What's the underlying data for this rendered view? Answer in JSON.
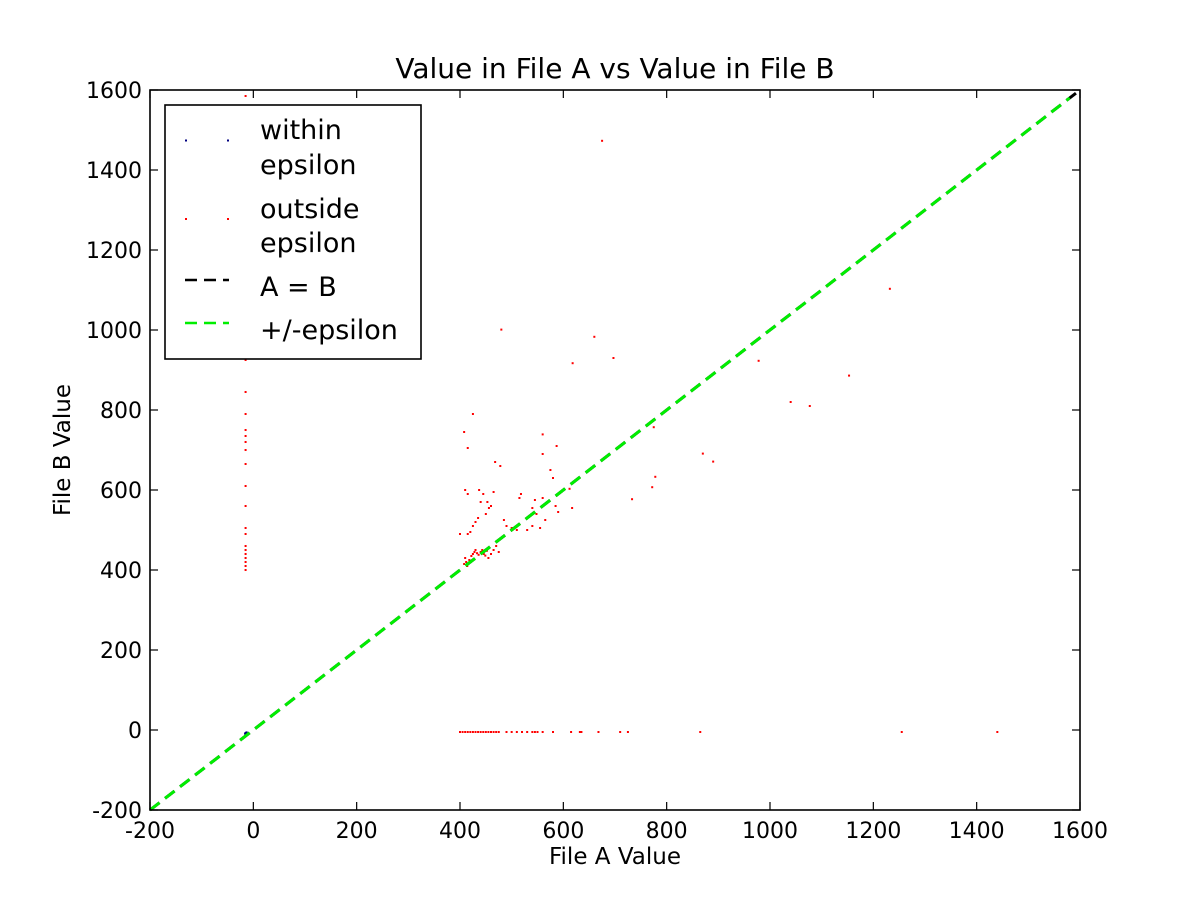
{
  "chart_data": {
    "type": "scatter",
    "title": "Value in File A vs Value in File B",
    "xlabel": "File A Value",
    "ylabel": "File B Value",
    "xlim": [
      -200,
      1600
    ],
    "ylim": [
      -200,
      1600
    ],
    "xticks": [
      -200,
      0,
      200,
      400,
      600,
      800,
      1000,
      1200,
      1400,
      1600
    ],
    "yticks": [
      -200,
      0,
      200,
      400,
      600,
      800,
      1000,
      1200,
      1400,
      1600
    ],
    "grid": false,
    "legend_position": "top-left",
    "series": [
      {
        "name": "within\nepsilon",
        "kind": "points",
        "color": "#000080",
        "points": [
          [
            -15,
            -8
          ],
          [
            -14,
            -7
          ],
          [
            -16,
            -9
          ],
          [
            -13,
            -6
          ]
        ]
      },
      {
        "name": "outside\nepsilon",
        "kind": "points",
        "color": "#ff0000",
        "points": [
          [
            675,
            1473
          ],
          [
            1232,
            1103
          ],
          [
            480,
            1001
          ],
          [
            660,
            983
          ],
          [
            697,
            930
          ],
          [
            618,
            917
          ],
          [
            978,
            923
          ],
          [
            1153,
            886
          ],
          [
            1040,
            820
          ],
          [
            1077,
            810
          ],
          [
            775,
            757
          ],
          [
            870,
            691
          ],
          [
            890,
            671
          ],
          [
            778,
            633
          ],
          [
            772,
            607
          ],
          [
            733,
            577
          ],
          [
            425,
            790
          ],
          [
            408,
            745
          ],
          [
            415,
            705
          ],
          [
            560,
            739
          ],
          [
            587,
            710
          ],
          [
            560,
            690
          ],
          [
            575,
            650
          ],
          [
            468,
            670
          ],
          [
            478,
            660
          ],
          [
            580,
            630
          ],
          [
            612,
            603
          ],
          [
            617,
            555
          ],
          [
            410,
            600
          ],
          [
            415,
            590
          ],
          [
            437,
            600
          ],
          [
            445,
            590
          ],
          [
            453,
            570
          ],
          [
            465,
            595
          ],
          [
            460,
            560
          ],
          [
            456,
            555
          ],
          [
            450,
            540
          ],
          [
            435,
            530
          ],
          [
            430,
            520
          ],
          [
            425,
            510
          ],
          [
            420,
            495
          ],
          [
            415,
            490
          ],
          [
            400,
            490
          ],
          [
            440,
            570
          ],
          [
            485,
            525
          ],
          [
            490,
            510
          ],
          [
            500,
            505
          ],
          [
            510,
            500
          ],
          [
            518,
            590
          ],
          [
            515,
            580
          ],
          [
            530,
            500
          ],
          [
            540,
            510
          ],
          [
            555,
            505
          ],
          [
            545,
            575
          ],
          [
            560,
            580
          ],
          [
            565,
            525
          ],
          [
            570,
            570
          ],
          [
            585,
            560
          ],
          [
            590,
            545
          ],
          [
            540,
            555
          ],
          [
            548,
            540
          ],
          [
            410,
            430
          ],
          [
            412,
            420
          ],
          [
            414,
            410
          ],
          [
            408,
            415
          ],
          [
            418,
            425
          ],
          [
            422,
            435
          ],
          [
            425,
            440
          ],
          [
            428,
            445
          ],
          [
            430,
            450
          ],
          [
            433,
            442
          ],
          [
            436,
            438
          ],
          [
            440,
            445
          ],
          [
            443,
            450
          ],
          [
            446,
            440
          ],
          [
            449,
            436
          ],
          [
            452,
            448
          ],
          [
            455,
            430
          ],
          [
            460,
            440
          ],
          [
            465,
            450
          ],
          [
            470,
            460
          ],
          [
            475,
            445
          ],
          [
            -15,
            1585
          ],
          [
            -15,
            1560
          ],
          [
            -15,
            925
          ],
          [
            -15,
            845
          ],
          [
            -15,
            790
          ],
          [
            -15,
            750
          ],
          [
            -15,
            735
          ],
          [
            -15,
            720
          ],
          [
            -15,
            700
          ],
          [
            -15,
            665
          ],
          [
            -15,
            610
          ],
          [
            -15,
            560
          ],
          [
            -15,
            505
          ],
          [
            -15,
            490
          ],
          [
            -15,
            460
          ],
          [
            -15,
            450
          ],
          [
            -15,
            440
          ],
          [
            -15,
            430
          ],
          [
            -15,
            420
          ],
          [
            -15,
            410
          ],
          [
            -15,
            400
          ],
          [
            400,
            -5
          ],
          [
            405,
            -5
          ],
          [
            410,
            -5
          ],
          [
            415,
            -5
          ],
          [
            420,
            -5
          ],
          [
            425,
            -5
          ],
          [
            430,
            -5
          ],
          [
            435,
            -5
          ],
          [
            440,
            -5
          ],
          [
            445,
            -5
          ],
          [
            450,
            -5
          ],
          [
            455,
            -5
          ],
          [
            460,
            -5
          ],
          [
            465,
            -5
          ],
          [
            470,
            -5
          ],
          [
            475,
            -5
          ],
          [
            490,
            -5
          ],
          [
            500,
            -5
          ],
          [
            510,
            -5
          ],
          [
            520,
            -5
          ],
          [
            530,
            -5
          ],
          [
            540,
            -5
          ],
          [
            545,
            -5
          ],
          [
            550,
            -5
          ],
          [
            560,
            -5
          ],
          [
            580,
            -5
          ],
          [
            615,
            -5
          ],
          [
            632,
            -5
          ],
          [
            635,
            -5
          ],
          [
            668,
            -5
          ],
          [
            710,
            -5
          ],
          [
            725,
            -5
          ],
          [
            865,
            -5
          ],
          [
            1255,
            -5
          ],
          [
            1440,
            -5
          ]
        ]
      },
      {
        "name": "A = B",
        "kind": "line",
        "color": "#000000",
        "dash": true,
        "points": [
          [
            -200,
            -200
          ],
          [
            1600,
            1600
          ]
        ]
      },
      {
        "name": "+/-epsilon",
        "kind": "line",
        "color": "#00ee00",
        "dash": true,
        "points": [
          [
            -200,
            -200
          ],
          [
            1580,
            1580
          ]
        ]
      }
    ]
  }
}
